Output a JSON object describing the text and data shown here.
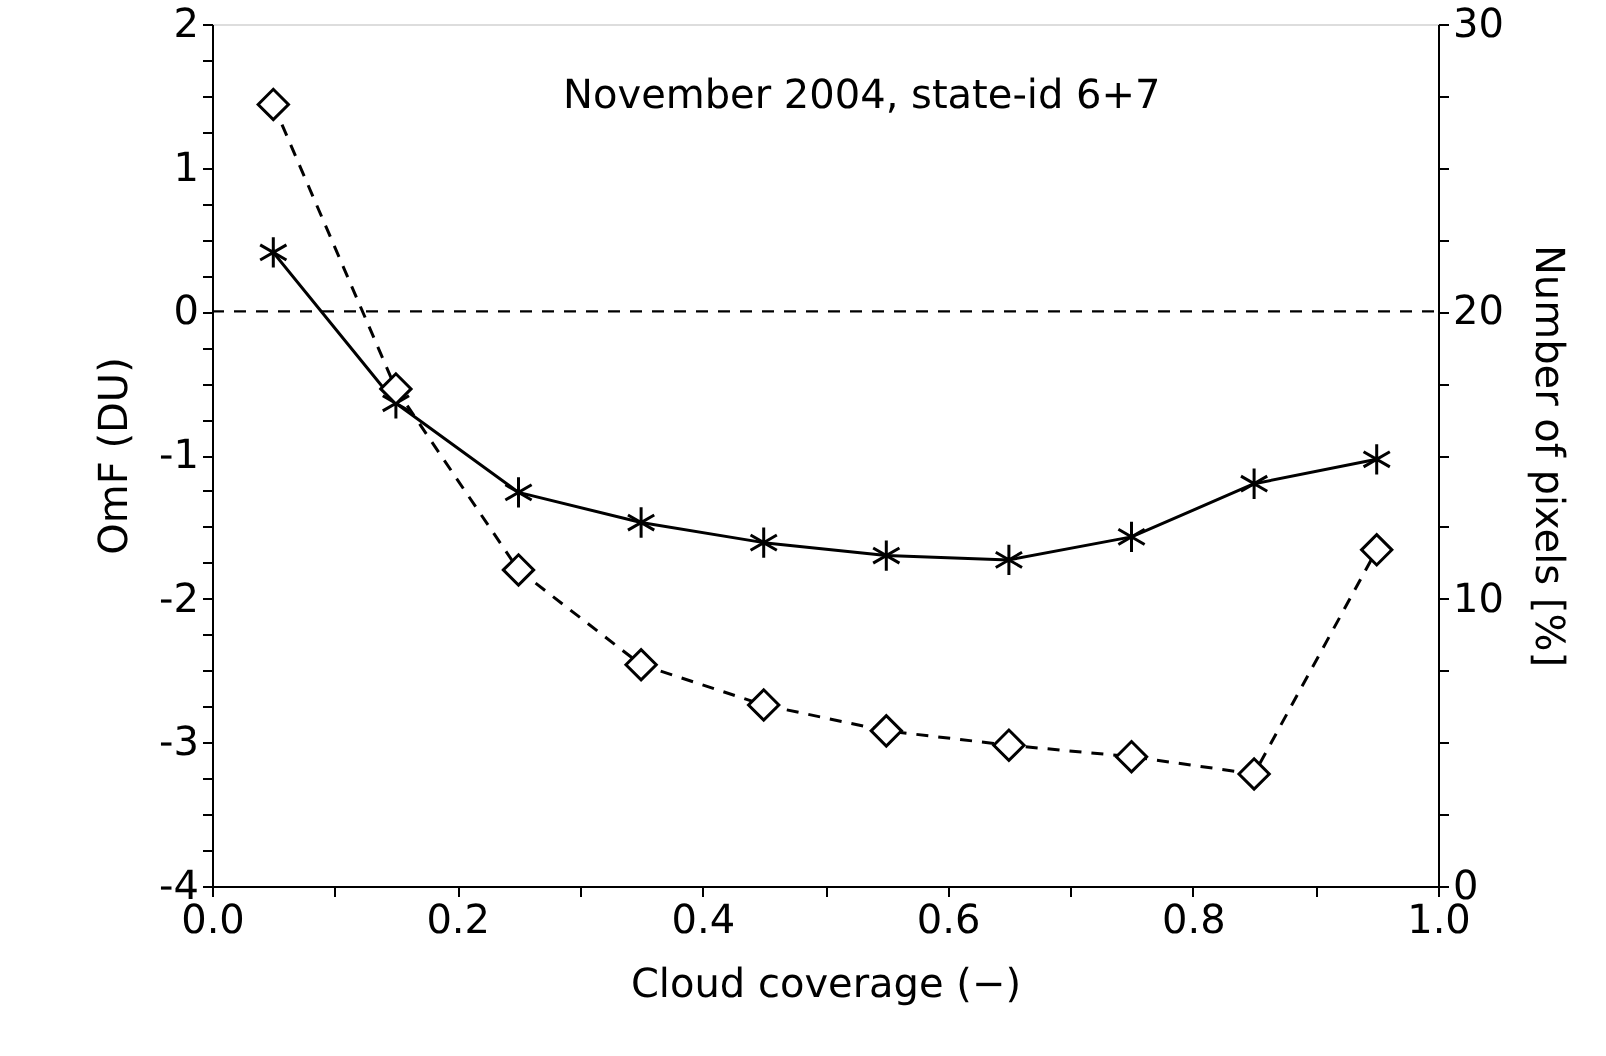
{
  "chart_data": {
    "type": "line",
    "annotations": [
      "November 2004, state-id 6+7"
    ],
    "xlabel": "Cloud coverage (−)",
    "ylabel": "OmF (DU)",
    "y2label": "Number of pixels [%]",
    "x": [
      0.05,
      0.15,
      0.25,
      0.35,
      0.45,
      0.55,
      0.65,
      0.75,
      0.85,
      0.95
    ],
    "series": [
      {
        "color": "#000000",
        "marker": "cross",
        "line_style": "solid",
        "values": [
          0.41,
          -0.64,
          -1.26,
          -1.47,
          -1.61,
          -1.7,
          -1.73,
          -1.57,
          -1.2,
          -1.03
        ]
      },
      {
        "color": "#000000",
        "marker": "diamond",
        "line_style": "dashed",
        "axis": "y2",
        "values": [
          27.2,
          17.3,
          11.0,
          7.7,
          6.3,
          5.4,
          4.9,
          4.5,
          3.9,
          11.7
        ]
      }
    ],
    "xlim": [
      0,
      1
    ],
    "xticks": [
      {
        "value": 0,
        "label": "0.0"
      },
      {
        "value": 0.1,
        "label": null
      },
      {
        "value": 0.2,
        "label": "0.2"
      },
      {
        "value": 0.3,
        "label": null
      },
      {
        "value": 0.4,
        "label": "0.4"
      },
      {
        "value": 0.5,
        "label": null
      },
      {
        "value": 0.6,
        "label": "0.6"
      },
      {
        "value": 0.7,
        "label": null
      },
      {
        "value": 0.8,
        "label": "0.8"
      },
      {
        "value": 0.9,
        "label": null
      },
      {
        "value": 1,
        "label": "1.0"
      }
    ],
    "ylim": [
      -4,
      2
    ],
    "yticks": [
      -4,
      {
        "value": -3.75,
        "label": null
      },
      {
        "value": -3.5,
        "label": null
      },
      {
        "value": -3.25,
        "label": null
      },
      -3,
      {
        "value": -2.75,
        "label": null
      },
      {
        "value": -2.5,
        "label": null
      },
      {
        "value": -2.25,
        "label": null
      },
      -2,
      {
        "value": -1.75,
        "label": null
      },
      {
        "value": -1.5,
        "label": null
      },
      {
        "value": -1.25,
        "label": null
      },
      -1,
      {
        "value": -0.75,
        "label": null
      },
      {
        "value": -0.5,
        "label": null
      },
      {
        "value": -0.25,
        "label": null
      },
      0,
      {
        "value": 0.25,
        "label": null
      },
      {
        "value": 0.5,
        "label": null
      },
      {
        "value": 0.75,
        "label": null
      },
      1,
      {
        "value": 1.25,
        "label": null
      },
      {
        "value": 1.5,
        "label": null
      },
      {
        "value": 1.75,
        "label": null
      },
      2
    ],
    "y2lim": [
      0,
      30
    ],
    "y2ticks": [
      0,
      {
        "value": 2.5,
        "label": null
      },
      {
        "value": 5,
        "label": null
      },
      {
        "value": 7.5,
        "label": null
      },
      10,
      {
        "value": 12.5,
        "label": null
      },
      {
        "value": 15,
        "label": null
      },
      {
        "value": 17.5,
        "label": null
      },
      20,
      {
        "value": 22.5,
        "label": null
      },
      {
        "value": 25,
        "label": null
      },
      {
        "value": 27.5,
        "label": null
      },
      30
    ],
    "ref_lines": [
      {
        "axis": "y",
        "value": 0,
        "line_style": "dashed"
      }
    ],
    "grid": false
  }
}
